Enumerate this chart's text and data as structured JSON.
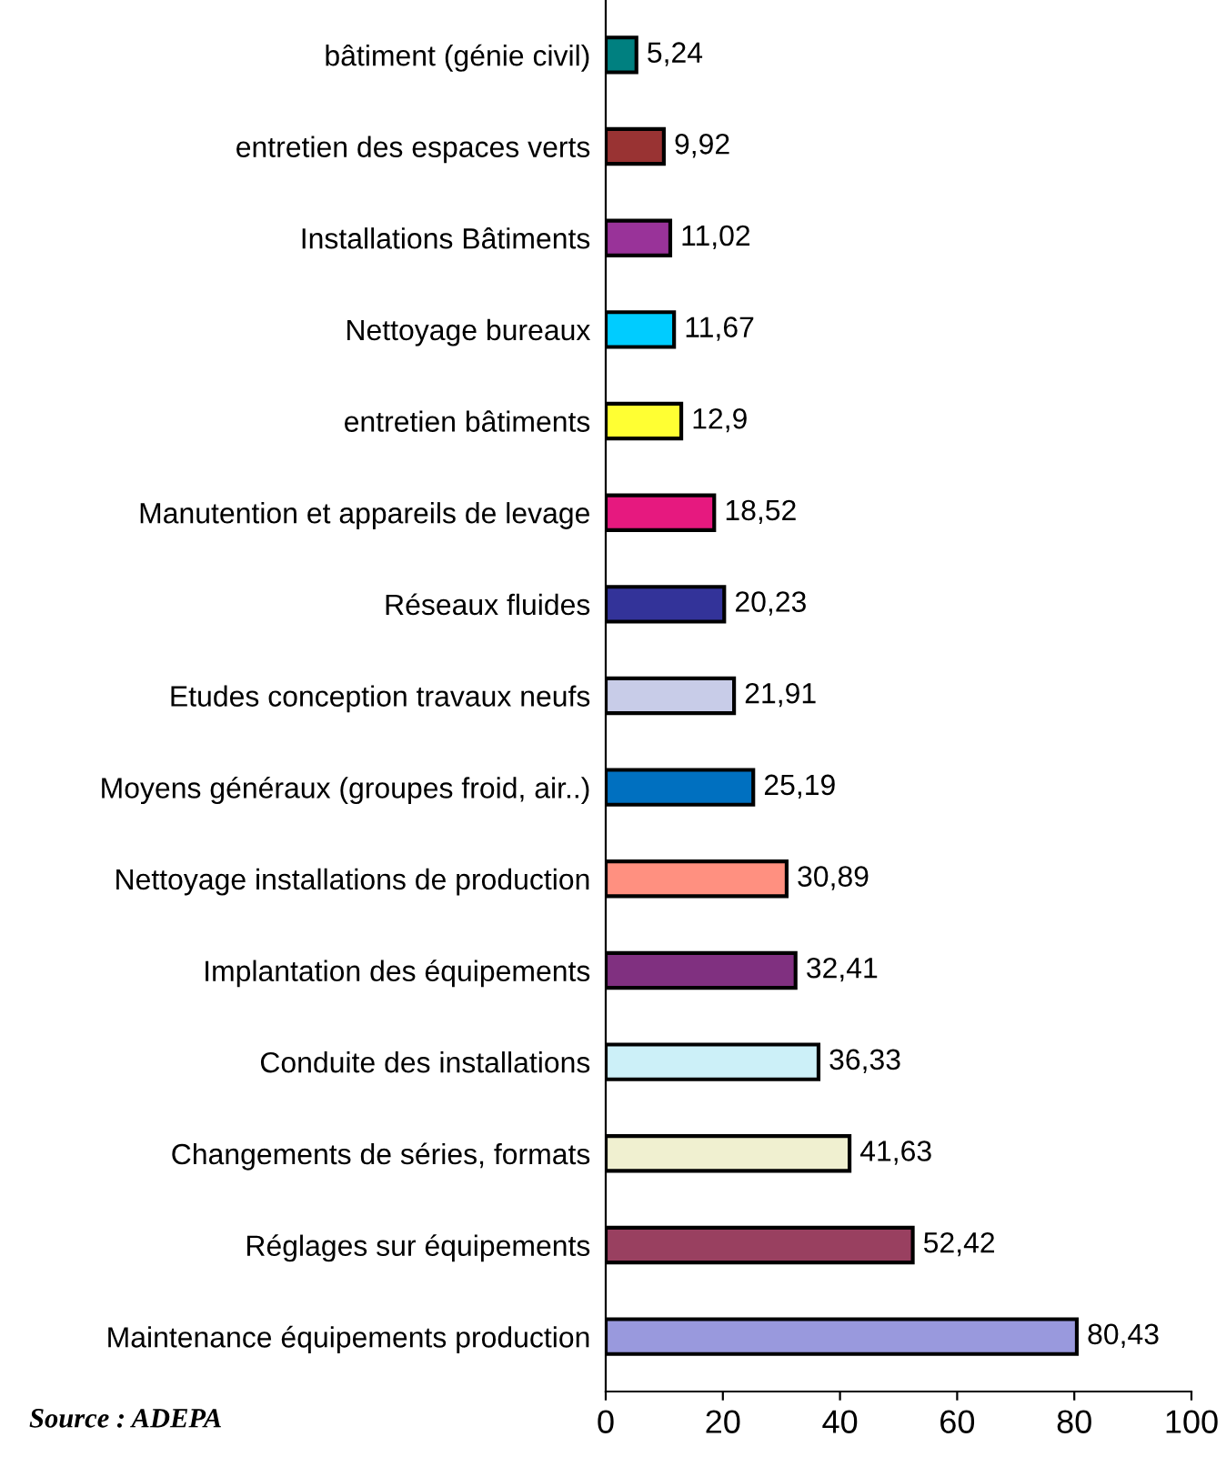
{
  "chart_data": {
    "type": "bar",
    "orientation": "horizontal",
    "categories": [
      "bâtiment (génie civil)",
      "entretien des espaces verts",
      "Installations Bâtiments",
      "Nettoyage bureaux",
      "entretien bâtiments",
      "Manutention et appareils de levage",
      "Réseaux fluides",
      "Etudes conception travaux neufs",
      "Moyens généraux (groupes froid, air..)",
      "Nettoyage installations de production",
      "Implantation des équipements",
      "Conduite des installations",
      "Changements de séries, formats",
      "Réglages sur équipements",
      "Maintenance équipements production"
    ],
    "values": [
      5.24,
      9.92,
      11.02,
      11.67,
      12.9,
      18.52,
      20.23,
      21.91,
      25.19,
      30.89,
      32.41,
      36.33,
      41.63,
      52.42,
      80.43
    ],
    "value_labels": [
      "5,24",
      "9,92",
      "11,02",
      "11,67",
      "12,9",
      "18,52",
      "20,23",
      "21,91",
      "25,19",
      "30,89",
      "32,41",
      "36,33",
      "41,63",
      "52,42",
      "80,43"
    ],
    "colors": [
      "#008080",
      "#993333",
      "#993399",
      "#00ccff",
      "#ffff33",
      "#e6197f",
      "#333399",
      "#c8cce8",
      "#0070c0",
      "#ff9080",
      "#803080",
      "#ccf0f8",
      "#f0f0d0",
      "#994060",
      "#9999dd"
    ],
    "xlim": [
      0,
      100
    ],
    "xticks": [
      0,
      20,
      40,
      60,
      80,
      100
    ],
    "grid": false,
    "legend": false,
    "annotations": [
      "Source : ADEPA"
    ]
  }
}
